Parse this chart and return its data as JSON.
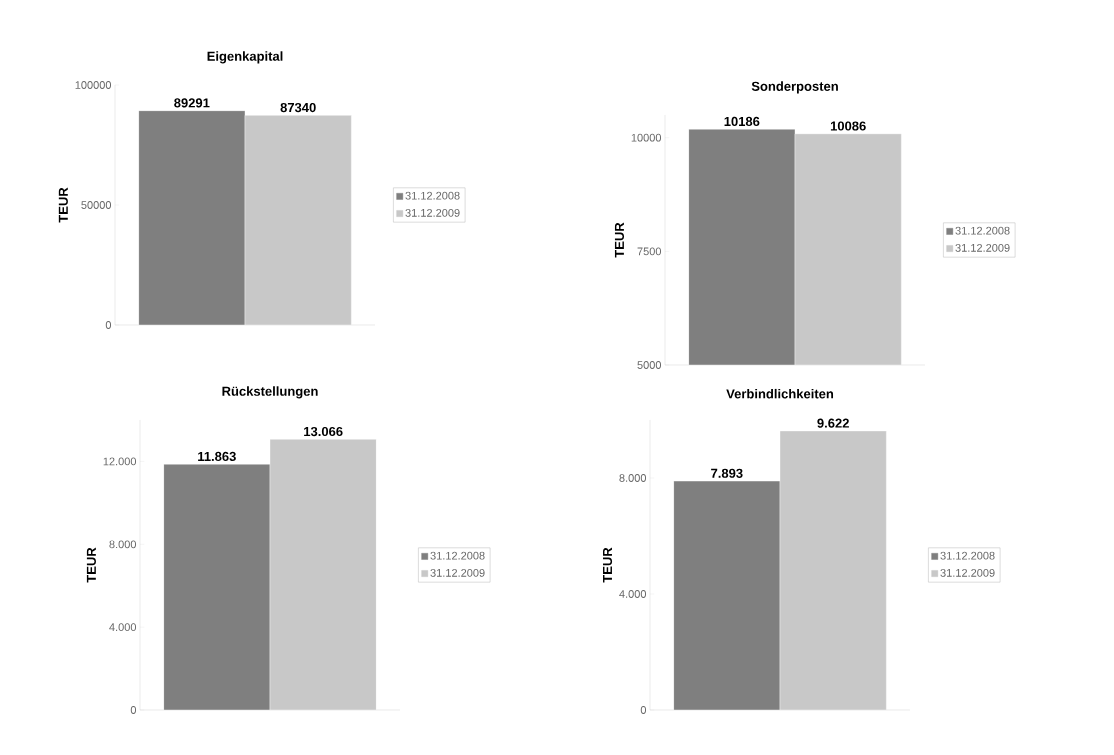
{
  "chart_data": [
    {
      "type": "bar",
      "title": "Eigenkapital",
      "ylabel": "TEUR",
      "categories": [
        null
      ],
      "ylim": [
        0,
        100000
      ],
      "yticks": [
        0,
        50000,
        100000
      ],
      "legend": "right",
      "grid": false,
      "series": [
        {
          "name": "31.12.2008",
          "color": "#7f7f7f",
          "values": [
            89291
          ],
          "value_labels": [
            "89291"
          ]
        },
        {
          "name": "31.12.2009",
          "color": "#c8c8c8",
          "values": [
            87340
          ],
          "value_labels": [
            "87340"
          ]
        }
      ]
    },
    {
      "type": "bar",
      "title": "Sonderposten",
      "ylabel": "TEUR",
      "categories": [
        null
      ],
      "ylim": [
        5000,
        10500
      ],
      "yticks": [
        5000,
        7500,
        10000
      ],
      "legend": "right",
      "grid": false,
      "series": [
        {
          "name": "31.12.2008",
          "color": "#7f7f7f",
          "values": [
            10186
          ],
          "value_labels": [
            "10186"
          ]
        },
        {
          "name": "31.12.2009",
          "color": "#c8c8c8",
          "values": [
            10086
          ],
          "value_labels": [
            "10086"
          ]
        }
      ]
    },
    {
      "type": "bar",
      "title": "Rückstellungen",
      "ylabel": "TEUR",
      "categories": [
        null
      ],
      "ylim": [
        0,
        14000
      ],
      "yticks": [
        0,
        {
          "value": 4000,
          "label": "4.000"
        },
        {
          "value": 8000,
          "label": "8.000"
        },
        {
          "value": 12000,
          "label": "12.000"
        }
      ],
      "legend": "right",
      "grid": false,
      "series": [
        {
          "name": "31.12.2008",
          "color": "#7f7f7f",
          "values": [
            11863
          ],
          "value_labels": [
            "11.863"
          ]
        },
        {
          "name": "31.12.2009",
          "color": "#c8c8c8",
          "values": [
            13066
          ],
          "value_labels": [
            "13.066"
          ]
        }
      ]
    },
    {
      "type": "bar",
      "title": "Verbindlichkeiten",
      "ylabel": "TEUR",
      "categories": [
        null
      ],
      "ylim": [
        0,
        10000
      ],
      "yticks": [
        0,
        {
          "value": 4000,
          "label": "4.000"
        },
        {
          "value": 8000,
          "label": "8.000"
        }
      ],
      "legend": "right",
      "grid": false,
      "series": [
        {
          "name": "31.12.2008",
          "color": "#7f7f7f",
          "values": [
            7893
          ],
          "value_labels": [
            "7.893"
          ]
        },
        {
          "name": "31.12.2009",
          "color": "#c8c8c8",
          "values": [
            9622
          ],
          "value_labels": [
            "9.622"
          ]
        }
      ]
    }
  ]
}
